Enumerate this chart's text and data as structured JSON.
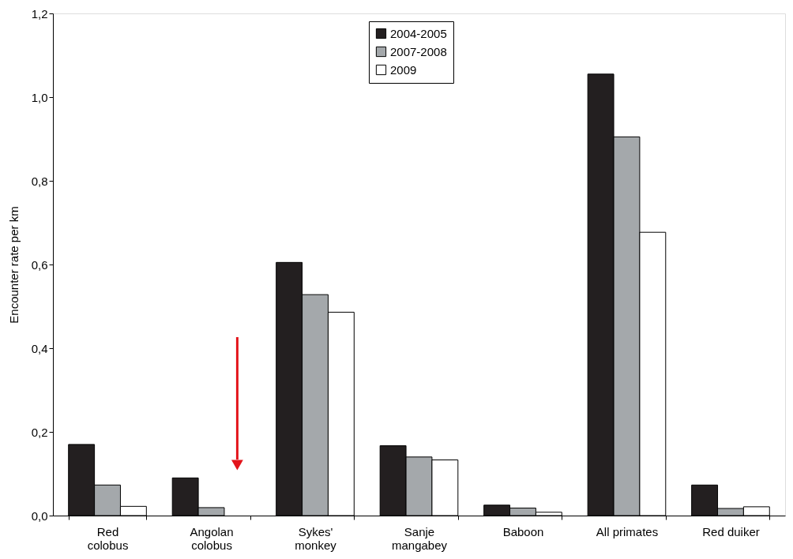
{
  "chart_data": {
    "type": "bar",
    "ylabel": "Encounter rate per km",
    "categories": [
      "Red\ncolobus",
      "Angolan\ncolobus",
      "Sykes'\nmonkey",
      "Sanje\nmangabey",
      "Baboon",
      "All primates",
      "Red duiker"
    ],
    "series": [
      {
        "name": "2004-2005",
        "color": "#231f20",
        "values": [
          0.17,
          0.09,
          0.605,
          0.167,
          0.025,
          1.055,
          0.073
        ]
      },
      {
        "name": "2007-2008",
        "color": "#a4a8ab",
        "values": [
          0.073,
          0.019,
          0.528,
          0.14,
          0.018,
          0.905,
          0.017
        ]
      },
      {
        "name": "2009",
        "color": "#ffffff",
        "values": [
          0.022,
          null,
          0.486,
          0.133,
          0.008,
          0.677,
          0.021
        ]
      }
    ],
    "ylim": [
      0,
      1.2
    ],
    "yticks": [
      {
        "value": 0,
        "label": "0,0"
      },
      {
        "value": 0.2,
        "label": "0,2"
      },
      {
        "value": 0.4,
        "label": "0,4"
      },
      {
        "value": 0.6,
        "label": "0,6"
      },
      {
        "value": 0.8,
        "label": "0,8"
      },
      {
        "value": 1.0,
        "label": "1,0"
      },
      {
        "value": 1.2,
        "label": "1,2"
      }
    ],
    "legend": "top",
    "grid": false
  }
}
